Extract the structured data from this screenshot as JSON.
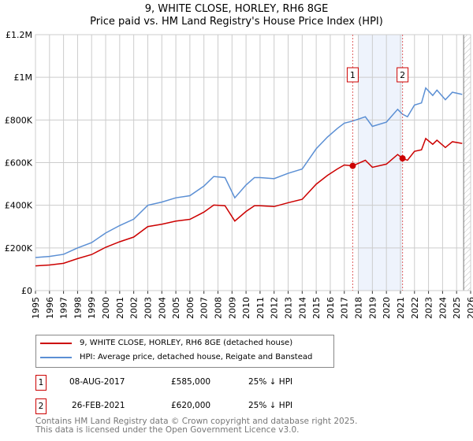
{
  "title": "9, WHITE CLOSE, HORLEY, RH6 8GE",
  "subtitle": "Price paid vs. HM Land Registry's House Price Index (HPI)",
  "chart_data": {
    "type": "line",
    "title": "9, WHITE CLOSE, HORLEY, RH6 8GE",
    "subtitle": "Price paid vs. HM Land Registry's House Price Index (HPI)",
    "xlim": [
      1995,
      2026
    ],
    "ylim": [
      0,
      1200000
    ],
    "x_ticks": [
      "1995",
      "1996",
      "1997",
      "1998",
      "1999",
      "2000",
      "2001",
      "2002",
      "2003",
      "2004",
      "2005",
      "2006",
      "2007",
      "2008",
      "2009",
      "2010",
      "2011",
      "2012",
      "2013",
      "2014",
      "2015",
      "2016",
      "2017",
      "2018",
      "2019",
      "2020",
      "2021",
      "2022",
      "2023",
      "2024",
      "2025",
      "2026"
    ],
    "y_ticks": [
      {
        "v": 0,
        "label": "£0"
      },
      {
        "v": 200000,
        "label": "£200K"
      },
      {
        "v": 400000,
        "label": "£400K"
      },
      {
        "v": 600000,
        "label": "£600K"
      },
      {
        "v": 800000,
        "label": "£800K"
      },
      {
        "v": 1000000,
        "label": "£1M"
      },
      {
        "v": 1200000,
        "label": "£1.2M"
      }
    ],
    "grid": true,
    "series": [
      {
        "name": "9, WHITE CLOSE, HORLEY, RH6 8GE (detached house)",
        "color": "#cc0000",
        "x": [
          1995,
          1996,
          1997,
          1998,
          1999,
          2000,
          2001,
          2002,
          2003,
          2004,
          2005,
          2006,
          2007,
          2007.7,
          2008.5,
          2009.2,
          2010,
          2010.6,
          2011,
          2012,
          2013,
          2014,
          2015,
          2015.8,
          2016.5,
          2017,
          2017.6,
          2018.5,
          2019,
          2020,
          2020.8,
          2021.15,
          2021.5,
          2022,
          2022.5,
          2022.8,
          2023.3,
          2023.6,
          2024.2,
          2024.7,
          2025.4
        ],
        "y": [
          116000,
          120000,
          128000,
          150000,
          169000,
          203000,
          229000,
          251000,
          300000,
          311000,
          326000,
          334000,
          368000,
          401000,
          398000,
          326000,
          371000,
          398000,
          398000,
          394000,
          412000,
          428000,
          499000,
          540000,
          570000,
          589000,
          585000,
          611000,
          578000,
          593000,
          638000,
          620000,
          611000,
          653000,
          660000,
          713000,
          686000,
          705000,
          671000,
          698000,
          690000
        ]
      },
      {
        "name": "HPI: Average price, detached house, Reigate and Banstead",
        "color": "#5b8fd4",
        "x": [
          1995,
          1996,
          1997,
          1998,
          1999,
          2000,
          2001,
          2002,
          2003,
          2004,
          2005,
          2006,
          2007,
          2007.7,
          2008.5,
          2009.2,
          2010,
          2010.6,
          2011,
          2012,
          2013,
          2014,
          2015,
          2015.8,
          2016.5,
          2017,
          2017.6,
          2018.5,
          2019,
          2020,
          2020.8,
          2021.15,
          2021.5,
          2022,
          2022.5,
          2022.8,
          2023.3,
          2023.6,
          2024.2,
          2024.7,
          2025.4
        ],
        "y": [
          155000,
          160000,
          170000,
          200000,
          225000,
          270000,
          305000,
          335000,
          400000,
          415000,
          435000,
          445000,
          490000,
          535000,
          530000,
          435000,
          495000,
          530000,
          530000,
          525000,
          550000,
          570000,
          665000,
          720000,
          760000,
          785000,
          795000,
          815000,
          770000,
          790000,
          850000,
          827000,
          815000,
          870000,
          880000,
          950000,
          915000,
          940000,
          895000,
          930000,
          920000
        ]
      }
    ],
    "sales": [
      {
        "label": "1",
        "x": 2017.6,
        "y": 585000
      },
      {
        "label": "2",
        "x": 2021.15,
        "y": 620000
      }
    ],
    "shaded_range": [
      2018,
      2021.15
    ],
    "forecast_hatch_from": 2025.5
  },
  "legend": {
    "items": [
      {
        "label": "9, WHITE CLOSE, HORLEY, RH6 8GE (detached house)",
        "color": "#cc0000"
      },
      {
        "label": "HPI: Average price, detached house, Reigate and Banstead",
        "color": "#5b8fd4"
      }
    ]
  },
  "transactions": [
    {
      "num": "1",
      "date": "08-AUG-2017",
      "price": "£585,000",
      "hpi": "25% ↓ HPI"
    },
    {
      "num": "2",
      "date": "26-FEB-2021",
      "price": "£620,000",
      "hpi": "25% ↓ HPI"
    }
  ],
  "footer": {
    "line1": "Contains HM Land Registry data © Crown copyright and database right 2025.",
    "line2": "This data is licensed under the Open Government Licence v3.0."
  }
}
